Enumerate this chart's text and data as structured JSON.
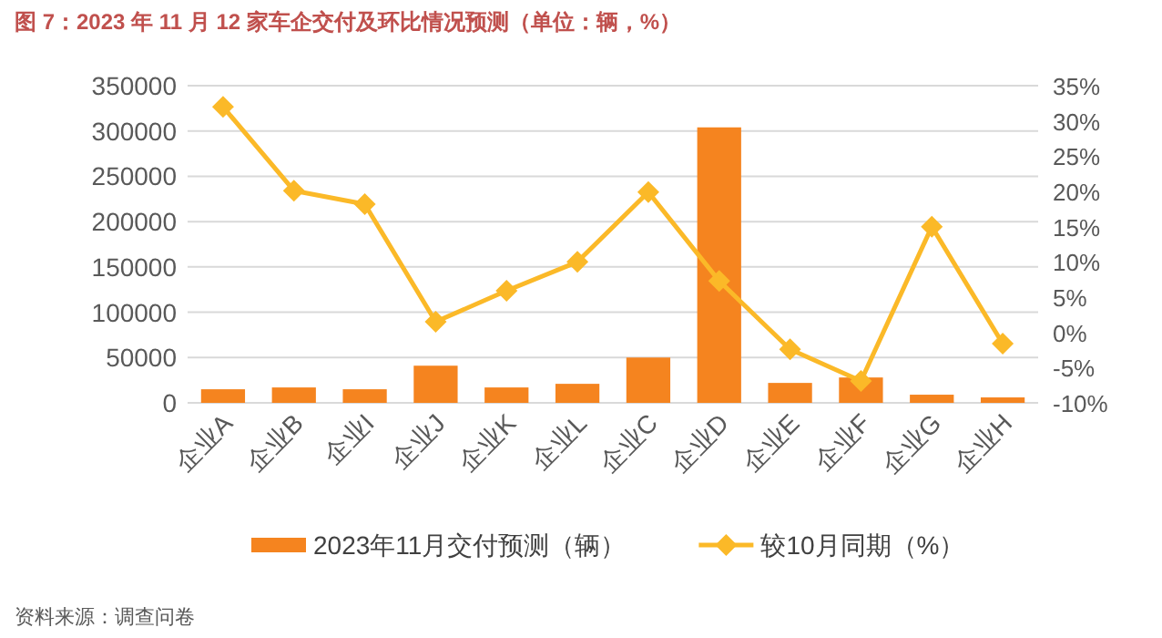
{
  "chart_data": {
    "type": "bar",
    "title": "图 7：2023 年 11 月 12 家车企交付及环比情况预测（单位：辆，%）",
    "categories": [
      "企业A",
      "企业B",
      "企业I",
      "企业J",
      "企业K",
      "企业L",
      "企业C",
      "企业D",
      "企业E",
      "企业F",
      "企业G",
      "企业H"
    ],
    "series": [
      {
        "name": "2023年11月交付预测（辆）",
        "color": "#f5841f",
        "values": [
          15000,
          17000,
          15000,
          41000,
          17000,
          21000,
          50000,
          304000,
          22000,
          28000,
          9000,
          6000
        ]
      },
      {
        "name": "较10月同期（%）",
        "type": "line",
        "axis": "y2",
        "color": "#fbb928",
        "marker": "diamond",
        "values": [
          32,
          20.1,
          18.2,
          1.5,
          5.9,
          10,
          19.9,
          7.3,
          -2.4,
          -6.9,
          15,
          -1.6
        ]
      }
    ],
    "ylim": [
      0,
      350000
    ],
    "yticks": [
      0,
      50000,
      100000,
      150000,
      200000,
      250000,
      300000,
      350000
    ],
    "y2lim": [
      -10,
      35
    ],
    "y2ticks": [
      {
        "value": -10,
        "label": "-10%"
      },
      {
        "value": -5,
        "label": "-5%"
      },
      {
        "value": 0,
        "label": "0%"
      },
      {
        "value": 5,
        "label": "5%"
      },
      {
        "value": 10,
        "label": "10%"
      },
      {
        "value": 15,
        "label": "15%"
      },
      {
        "value": 20,
        "label": "20%"
      },
      {
        "value": 25,
        "label": "25%"
      },
      {
        "value": 30,
        "label": "30%"
      },
      {
        "value": 35,
        "label": "35%"
      }
    ],
    "grid": "y",
    "legend": "bottom",
    "annotations": [
      "资料来源：调查问卷"
    ]
  }
}
